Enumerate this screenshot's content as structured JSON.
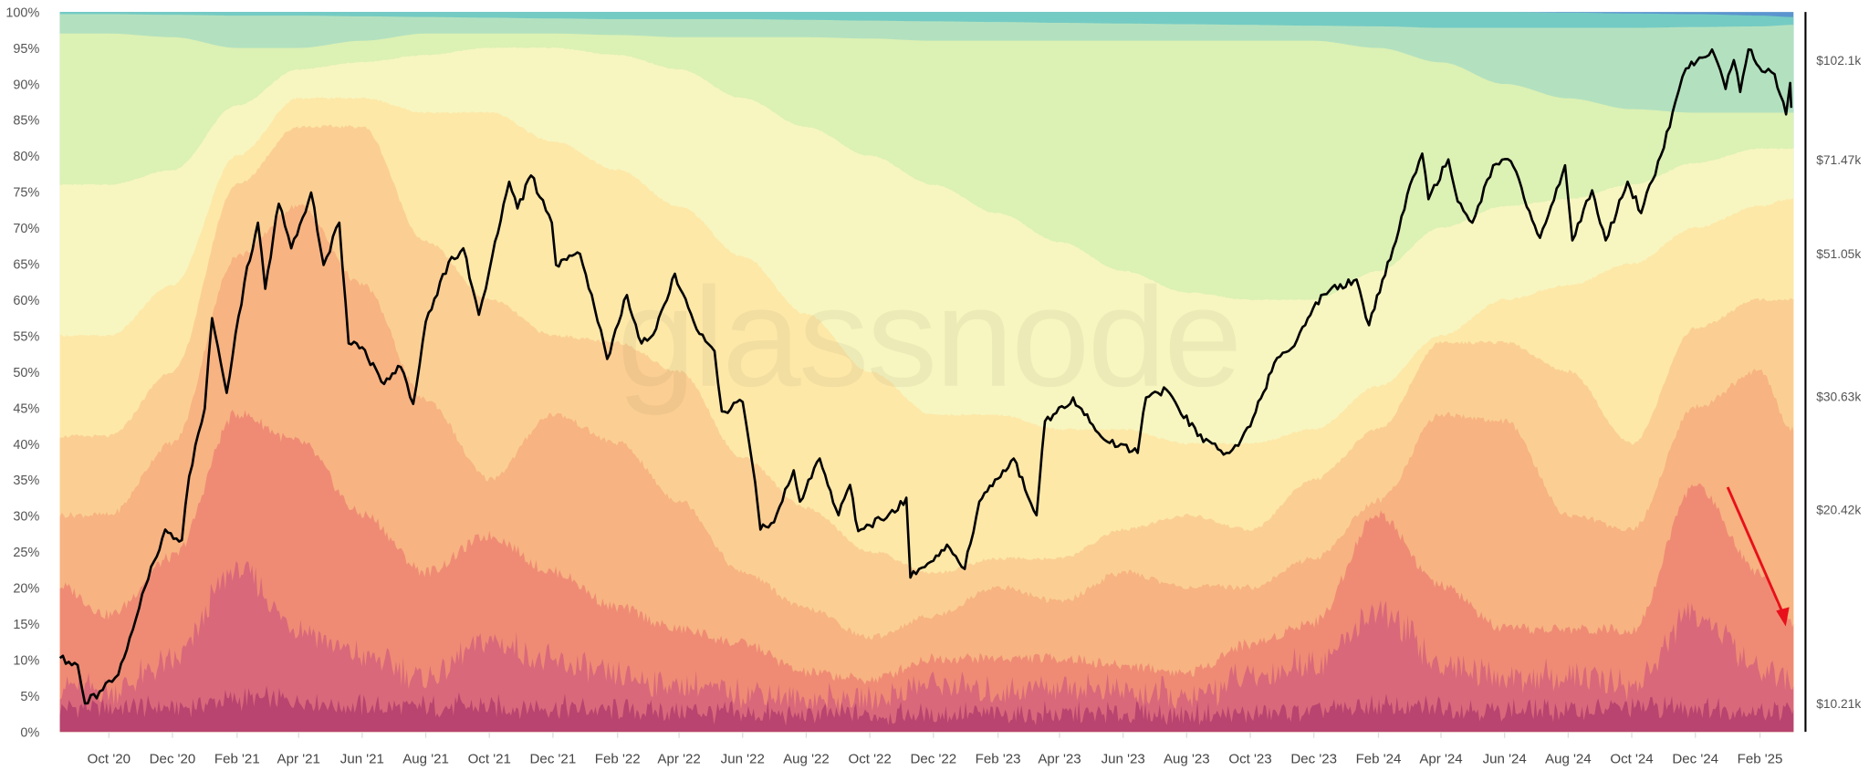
{
  "chart_data": {
    "type": "area",
    "stacked": true,
    "watermark": "glassnode",
    "x_domain": [
      "2020-08-15",
      "2025-03-03"
    ],
    "y_left": {
      "range": [
        0,
        100
      ],
      "ticks": [
        "0%",
        "5%",
        "10%",
        "15%",
        "20%",
        "25%",
        "30%",
        "35%",
        "40%",
        "45%",
        "50%",
        "55%",
        "60%",
        "65%",
        "70%",
        "75%",
        "80%",
        "85%",
        "90%",
        "95%",
        "100%"
      ]
    },
    "y_right": {
      "scale": "log",
      "tick_values": [
        102.1,
        71.47,
        51.05,
        30.63,
        20.42,
        10.21
      ],
      "ticks": [
        "$102.1k",
        "$71.47k",
        "$51.05k",
        "$30.63k",
        "$20.42k",
        "$10.21k"
      ]
    },
    "x_ticks": [
      {
        "date": "2020-10-01",
        "label": "Oct '20"
      },
      {
        "date": "2020-12-01",
        "label": "Dec '20"
      },
      {
        "date": "2021-02-01",
        "label": "Feb '21"
      },
      {
        "date": "2021-04-01",
        "label": "Apr '21"
      },
      {
        "date": "2021-06-01",
        "label": "Jun '21"
      },
      {
        "date": "2021-08-01",
        "label": "Aug '21"
      },
      {
        "date": "2021-10-01",
        "label": "Oct '21"
      },
      {
        "date": "2021-12-01",
        "label": "Dec '21"
      },
      {
        "date": "2022-02-01",
        "label": "Feb '22"
      },
      {
        "date": "2022-04-01",
        "label": "Apr '22"
      },
      {
        "date": "2022-06-01",
        "label": "Jun '22"
      },
      {
        "date": "2022-08-01",
        "label": "Aug '22"
      },
      {
        "date": "2022-10-01",
        "label": "Oct '22"
      },
      {
        "date": "2022-12-01",
        "label": "Dec '22"
      },
      {
        "date": "2023-02-01",
        "label": "Feb '23"
      },
      {
        "date": "2023-04-01",
        "label": "Apr '23"
      },
      {
        "date": "2023-06-01",
        "label": "Jun '23"
      },
      {
        "date": "2023-08-01",
        "label": "Aug '23"
      },
      {
        "date": "2023-10-01",
        "label": "Oct '23"
      },
      {
        "date": "2023-12-01",
        "label": "Dec '23"
      },
      {
        "date": "2024-02-01",
        "label": "Feb '24"
      },
      {
        "date": "2024-04-01",
        "label": "Apr '24"
      },
      {
        "date": "2024-06-01",
        "label": "Jun '24"
      },
      {
        "date": "2024-08-01",
        "label": "Aug '24"
      },
      {
        "date": "2024-10-01",
        "label": "Oct '24"
      },
      {
        "date": "2024-12-01",
        "label": "Dec '24"
      },
      {
        "date": "2025-02-01",
        "label": "Feb '25"
      }
    ],
    "band_dates": [
      "2020-08-15",
      "2020-10-01",
      "2020-12-01",
      "2021-02-01",
      "2021-04-01",
      "2021-06-01",
      "2021-08-01",
      "2021-10-01",
      "2021-12-01",
      "2022-02-01",
      "2022-04-01",
      "2022-06-01",
      "2022-08-01",
      "2022-10-01",
      "2022-12-01",
      "2023-02-01",
      "2023-04-01",
      "2023-06-01",
      "2023-08-01",
      "2023-10-01",
      "2023-12-01",
      "2024-02-01",
      "2024-04-01",
      "2024-06-01",
      "2024-08-01",
      "2024-10-01",
      "2024-12-01",
      "2025-02-01",
      "2025-03-03"
    ],
    "bands_cumulative_pct": [
      {
        "color": "#b8446f",
        "values": [
          3,
          3,
          3,
          4,
          4,
          3,
          3,
          3,
          3,
          2.5,
          2.5,
          2,
          2,
          2,
          2,
          2,
          2,
          2,
          2,
          2,
          2.5,
          3,
          3,
          2.5,
          2.5,
          3,
          3,
          2.5,
          2.5
        ]
      },
      {
        "color": "#d9687b",
        "values": [
          6,
          5,
          9,
          22,
          14,
          10,
          7,
          12,
          9,
          7,
          6,
          5,
          4,
          4,
          6,
          5,
          6,
          5,
          4,
          7,
          9,
          16,
          9,
          7,
          7,
          6,
          16,
          8,
          6
        ]
      },
      {
        "color": "#ef8b74",
        "values": [
          20,
          16,
          24,
          44,
          40,
          30,
          22,
          27,
          22,
          17,
          14,
          12,
          8,
          7,
          10,
          10,
          10,
          9,
          8,
          12,
          15,
          30,
          20,
          14,
          14,
          14,
          34,
          22,
          15
        ]
      },
      {
        "color": "#f7b381",
        "values": [
          30,
          30,
          40,
          66,
          73,
          62,
          46,
          35,
          44,
          40,
          32,
          22,
          17,
          13,
          16,
          20,
          18,
          22,
          20,
          20,
          24,
          32,
          44,
          43,
          30,
          28,
          45,
          50,
          42
        ]
      },
      {
        "color": "#fbcf93",
        "values": [
          41,
          41,
          50,
          76,
          84,
          84,
          68,
          60,
          55,
          54,
          50,
          38,
          31,
          25,
          22,
          24,
          24,
          28,
          30,
          28,
          35,
          42,
          54,
          54,
          50,
          40,
          56,
          60,
          60
        ]
      },
      {
        "color": "#fde8a8",
        "values": [
          55,
          55,
          62,
          80,
          88,
          88,
          86,
          86,
          82,
          78,
          73,
          66,
          58,
          50,
          44,
          44,
          42,
          42,
          40,
          40,
          42,
          48,
          55,
          60,
          62,
          65,
          70,
          73,
          74
        ]
      },
      {
        "color": "#f7f6c0",
        "values": [
          76,
          76,
          78,
          87,
          92,
          93,
          94,
          95,
          95,
          94,
          92,
          88,
          84,
          80,
          76,
          72,
          68,
          64,
          61,
          60,
          60,
          64,
          70,
          73,
          74,
          76,
          79,
          81,
          81
        ]
      },
      {
        "color": "#dcf1b4",
        "values": [
          97,
          97,
          96.5,
          95,
          95,
          96,
          97,
          97,
          97,
          96.8,
          96.5,
          96.5,
          96.5,
          96.3,
          96,
          96,
          96,
          96,
          96,
          96,
          96,
          95,
          93,
          90,
          88,
          86.5,
          86,
          86,
          86
        ]
      },
      {
        "color": "#b3e1bf",
        "values": [
          99.7,
          99.7,
          99.6,
          99.5,
          99.5,
          99.4,
          99.3,
          99.2,
          99.1,
          99,
          99,
          99,
          98.9,
          98.8,
          98.7,
          98.6,
          98.5,
          98.4,
          98.3,
          98.2,
          98.1,
          98,
          97.8,
          97.8,
          97.8,
          97.8,
          97.9,
          98,
          98.2
        ]
      },
      {
        "color": "#74cbc4",
        "values": [
          100,
          100,
          100,
          100,
          100,
          100,
          100,
          100,
          100,
          100,
          100,
          100,
          100,
          100,
          100,
          100,
          100,
          100,
          100,
          100,
          100,
          100,
          100,
          100,
          99.9,
          99.8,
          99.7,
          99.5,
          99.3
        ]
      },
      {
        "color": "#5b95cf",
        "values": [
          100,
          100,
          100,
          100,
          100,
          100,
          100,
          100,
          100,
          100,
          100,
          100,
          100,
          100,
          100,
          100,
          100,
          100,
          100,
          100,
          100,
          100,
          100,
          100,
          100,
          100,
          100,
          100,
          100
        ]
      }
    ],
    "price_series": {
      "color": "#000000",
      "unit": "USD",
      "points": [
        [
          "2020-08-15",
          12000
        ],
        [
          "2020-09-01",
          11700
        ],
        [
          "2020-09-08",
          10200
        ],
        [
          "2020-09-25",
          10700
        ],
        [
          "2020-10-10",
          11300
        ],
        [
          "2020-10-21",
          12900
        ],
        [
          "2020-11-05",
          15500
        ],
        [
          "2020-11-24",
          19000
        ],
        [
          "2020-12-10",
          18300
        ],
        [
          "2020-12-17",
          23000
        ],
        [
          "2021-01-01",
          29300
        ],
        [
          "2021-01-08",
          40500
        ],
        [
          "2021-01-22",
          31000
        ],
        [
          "2021-02-08",
          46000
        ],
        [
          "2021-02-21",
          57000
        ],
        [
          "2021-02-28",
          45000
        ],
        [
          "2021-03-13",
          61000
        ],
        [
          "2021-03-25",
          52000
        ],
        [
          "2021-04-13",
          63500
        ],
        [
          "2021-04-25",
          49000
        ],
        [
          "2021-05-10",
          57000
        ],
        [
          "2021-05-19",
          37000
        ],
        [
          "2021-06-01",
          36500
        ],
        [
          "2021-06-22",
          32000
        ],
        [
          "2021-07-08",
          34000
        ],
        [
          "2021-07-20",
          29800
        ],
        [
          "2021-08-01",
          40000
        ],
        [
          "2021-08-23",
          49500
        ],
        [
          "2021-09-06",
          52000
        ],
        [
          "2021-09-21",
          41000
        ],
        [
          "2021-10-01",
          48000
        ],
        [
          "2021-10-20",
          66000
        ],
        [
          "2021-10-28",
          60000
        ],
        [
          "2021-11-10",
          67500
        ],
        [
          "2021-11-30",
          57000
        ],
        [
          "2021-12-04",
          49000
        ],
        [
          "2021-12-27",
          51000
        ],
        [
          "2022-01-10",
          42000
        ],
        [
          "2022-01-22",
          35000
        ],
        [
          "2022-02-10",
          44000
        ],
        [
          "2022-02-24",
          37000
        ],
        [
          "2022-03-10",
          39000
        ],
        [
          "2022-03-28",
          47500
        ],
        [
          "2022-04-15",
          40000
        ],
        [
          "2022-05-05",
          36000
        ],
        [
          "2022-05-12",
          29000
        ],
        [
          "2022-06-01",
          30000
        ],
        [
          "2022-06-13",
          22500
        ],
        [
          "2022-06-18",
          19000
        ],
        [
          "2022-07-01",
          19500
        ],
        [
          "2022-07-20",
          23500
        ],
        [
          "2022-07-26",
          21000
        ],
        [
          "2022-08-14",
          24500
        ],
        [
          "2022-09-01",
          20000
        ],
        [
          "2022-09-12",
          22300
        ],
        [
          "2022-09-20",
          18900
        ],
        [
          "2022-10-01",
          19300
        ],
        [
          "2022-10-25",
          20200
        ],
        [
          "2022-11-05",
          21300
        ],
        [
          "2022-11-09",
          16000
        ],
        [
          "2022-12-01",
          17000
        ],
        [
          "2022-12-14",
          18000
        ],
        [
          "2022-12-31",
          16500
        ],
        [
          "2023-01-14",
          21000
        ],
        [
          "2023-02-16",
          24500
        ],
        [
          "2023-03-10",
          20000
        ],
        [
          "2023-03-18",
          28000
        ],
        [
          "2023-04-14",
          30500
        ],
        [
          "2023-05-11",
          26500
        ],
        [
          "2023-06-15",
          25000
        ],
        [
          "2023-06-23",
          30500
        ],
        [
          "2023-07-13",
          31300
        ],
        [
          "2023-08-17",
          26000
        ],
        [
          "2023-09-11",
          25000
        ],
        [
          "2023-10-01",
          27500
        ],
        [
          "2023-10-24",
          34500
        ],
        [
          "2023-11-15",
          37500
        ],
        [
          "2023-12-08",
          44000
        ],
        [
          "2024-01-11",
          46500
        ],
        [
          "2024-01-23",
          39500
        ],
        [
          "2024-02-15",
          52000
        ],
        [
          "2024-03-05",
          67000
        ],
        [
          "2024-03-14",
          73000
        ],
        [
          "2024-03-20",
          62000
        ],
        [
          "2024-04-08",
          71500
        ],
        [
          "2024-04-17",
          61500
        ],
        [
          "2024-05-01",
          57000
        ],
        [
          "2024-05-21",
          70000
        ],
        [
          "2024-06-07",
          71000
        ],
        [
          "2024-07-05",
          54000
        ],
        [
          "2024-07-29",
          70000
        ],
        [
          "2024-08-05",
          53500
        ],
        [
          "2024-08-24",
          64000
        ],
        [
          "2024-09-06",
          53500
        ],
        [
          "2024-09-27",
          66000
        ],
        [
          "2024-10-10",
          59000
        ],
        [
          "2024-10-29",
          72500
        ],
        [
          "2024-11-12",
          88000
        ],
        [
          "2024-11-22",
          99000
        ],
        [
          "2024-12-05",
          103000
        ],
        [
          "2024-12-17",
          106000
        ],
        [
          "2024-12-30",
          92000
        ],
        [
          "2025-01-07",
          102000
        ],
        [
          "2025-01-13",
          91000
        ],
        [
          "2025-01-21",
          106000
        ],
        [
          "2025-02-03",
          98000
        ],
        [
          "2025-02-15",
          97000
        ],
        [
          "2025-02-26",
          84000
        ],
        [
          "2025-03-02",
          94000
        ],
        [
          "2025-03-03",
          86000
        ]
      ]
    },
    "annotation": {
      "type": "arrow",
      "color": "#e8101a",
      "from_date": "2025-01-01",
      "from_pct": 34,
      "to_date": "2025-02-28",
      "to_pct": 15
    }
  }
}
